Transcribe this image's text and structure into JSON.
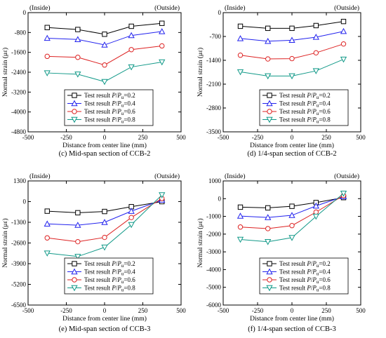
{
  "colors": {
    "s02": "#000000",
    "s04": "#2222ee",
    "s06": "#dd2222",
    "s08": "#119988"
  },
  "chart_data": [
    {
      "type": "line",
      "caption": "(c) Mid-span section of CCB-2",
      "corner_left": "(Inside)",
      "corner_right": "(Outside)",
      "xlabel": "Distance from center line (mm)",
      "ylabel": "Normal strain (με)",
      "xlim": [
        -500,
        500
      ],
      "ylim": [
        -4800,
        0
      ],
      "xticks": [
        -500,
        -250,
        0,
        250,
        500
      ],
      "yticks": [
        0,
        -800,
        -1600,
        -2400,
        -3200,
        -4000,
        -4800
      ],
      "x": [
        -375,
        -175,
        0,
        175,
        375
      ],
      "legend_prefix": "Test result ",
      "series": [
        {
          "name": "P/Pu=0.2",
          "marker": "square",
          "color": "#000000",
          "values": [
            -600,
            -680,
            -870,
            -550,
            -430
          ]
        },
        {
          "name": "P/Pu=0.4",
          "marker": "triangle-up",
          "color": "#2222ee",
          "values": [
            -1030,
            -1080,
            -1300,
            -920,
            -760
          ]
        },
        {
          "name": "P/Pu=0.6",
          "marker": "circle",
          "color": "#dd2222",
          "values": [
            -1760,
            -1800,
            -2110,
            -1490,
            -1340
          ]
        },
        {
          "name": "P/Pu=0.8",
          "marker": "triangle-down",
          "color": "#119988",
          "values": [
            -2430,
            -2480,
            -2780,
            -2190,
            -1990
          ]
        }
      ]
    },
    {
      "type": "line",
      "caption": "(d) 1/4-span section of CCB-2",
      "corner_left": "(Inside)",
      "corner_right": "(Outside)",
      "xlabel": "Distance from center line (mm)",
      "ylabel": "Normal strain (με)",
      "xlim": [
        -500,
        500
      ],
      "ylim": [
        -3500,
        0
      ],
      "xticks": [
        -500,
        -250,
        0,
        250,
        500
      ],
      "yticks": [
        0,
        -700,
        -1400,
        -2100,
        -2800,
        -3500
      ],
      "x": [
        -375,
        -175,
        0,
        175,
        375
      ],
      "legend_prefix": "Test result ",
      "series": [
        {
          "name": "P/Pu=0.2",
          "marker": "square",
          "color": "#000000",
          "values": [
            -400,
            -460,
            -460,
            -380,
            -260
          ]
        },
        {
          "name": "P/Pu=0.4",
          "marker": "triangle-up",
          "color": "#2222ee",
          "values": [
            -760,
            -840,
            -810,
            -720,
            -550
          ]
        },
        {
          "name": "P/Pu=0.6",
          "marker": "circle",
          "color": "#dd2222",
          "values": [
            -1250,
            -1360,
            -1350,
            -1180,
            -920
          ]
        },
        {
          "name": "P/Pu=0.8",
          "marker": "triangle-down",
          "color": "#119988",
          "values": [
            -1740,
            -1860,
            -1860,
            -1710,
            -1370
          ]
        }
      ]
    },
    {
      "type": "line",
      "caption": "(e) Mid-span section of CCB-3",
      "corner_left": "(Inside)",
      "corner_right": "(Outside)",
      "xlabel": "Distance from center line (mm)",
      "ylabel": "Normal strain (με)",
      "xlim": [
        -500,
        500
      ],
      "ylim": [
        -6500,
        1300
      ],
      "xticks": [
        -500,
        -250,
        0,
        250,
        500
      ],
      "yticks": [
        1300,
        0,
        -1300,
        -2600,
        -3900,
        -5200,
        -6500
      ],
      "x": [
        -375,
        -175,
        0,
        175,
        375
      ],
      "legend_prefix": "Test result ",
      "series": [
        {
          "name": "P/Pu=0.2",
          "marker": "square",
          "color": "#000000",
          "values": [
            -600,
            -700,
            -620,
            -320,
            0
          ]
        },
        {
          "name": "P/Pu=0.4",
          "marker": "triangle-up",
          "color": "#2222ee",
          "values": [
            -1400,
            -1480,
            -1300,
            -600,
            100
          ]
        },
        {
          "name": "P/Pu=0.6",
          "marker": "circle",
          "color": "#dd2222",
          "values": [
            -2280,
            -2520,
            -2250,
            -1000,
            200
          ]
        },
        {
          "name": "P/Pu=0.8",
          "marker": "triangle-down",
          "color": "#119988",
          "values": [
            -3240,
            -3450,
            -2870,
            -1450,
            420
          ]
        }
      ]
    },
    {
      "type": "line",
      "caption": "(f) 1/4-span section of CCB-3",
      "corner_left": "(Inside)",
      "corner_right": "(Outside)",
      "xlabel": "Distance from center line (mm)",
      "ylabel": "Normal strain (με)",
      "xlim": [
        -500,
        500
      ],
      "ylim": [
        -6000,
        1000
      ],
      "xticks": [
        -500,
        -250,
        0,
        250,
        500
      ],
      "yticks": [
        1000,
        0,
        -1000,
        -2000,
        -3000,
        -4000,
        -5000,
        -6000
      ],
      "x": [
        -375,
        -175,
        0,
        175,
        375
      ],
      "legend_prefix": "Test result ",
      "series": [
        {
          "name": "P/Pu=0.2",
          "marker": "square",
          "color": "#000000",
          "values": [
            -480,
            -520,
            -430,
            -220,
            60
          ]
        },
        {
          "name": "P/Pu=0.4",
          "marker": "triangle-up",
          "color": "#2222ee",
          "values": [
            -980,
            -1060,
            -940,
            -410,
            120
          ]
        },
        {
          "name": "P/Pu=0.6",
          "marker": "circle",
          "color": "#dd2222",
          "values": [
            -1600,
            -1690,
            -1520,
            -760,
            180
          ]
        },
        {
          "name": "P/Pu=0.8",
          "marker": "triangle-down",
          "color": "#119988",
          "values": [
            -2300,
            -2430,
            -2200,
            -1000,
            300
          ]
        }
      ]
    }
  ]
}
